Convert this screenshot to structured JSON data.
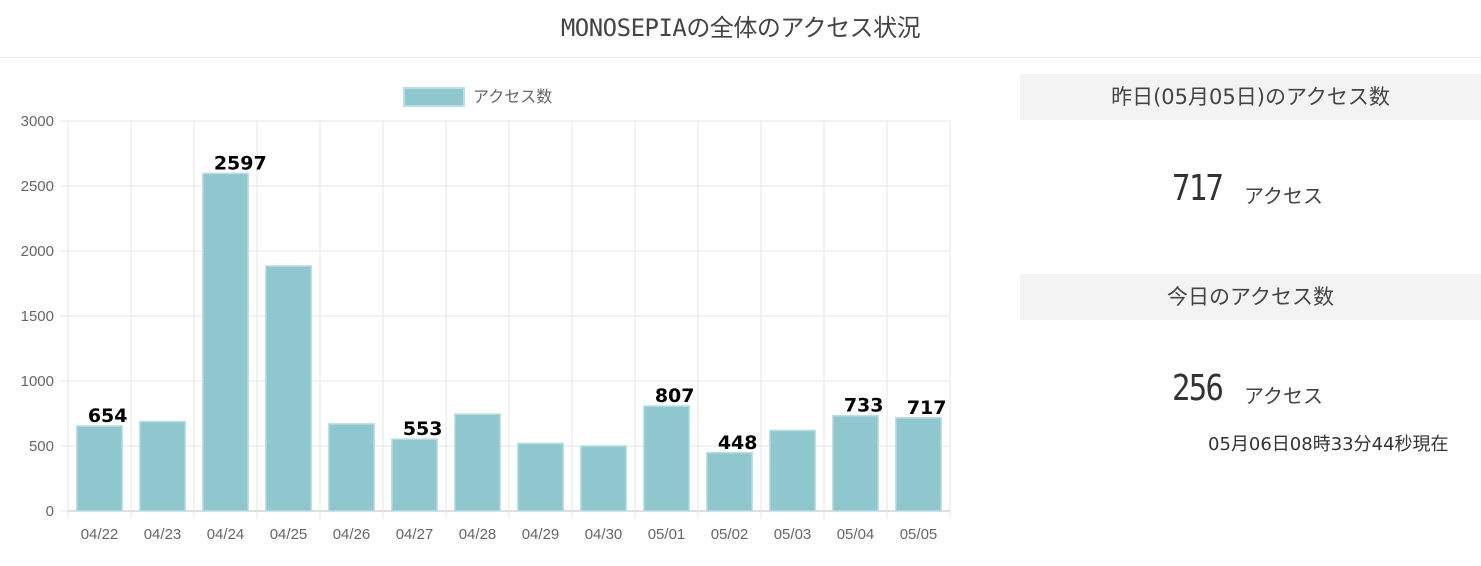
{
  "page": {
    "title": "MONOSEPIAの全体のアクセス状況"
  },
  "chart_data": {
    "type": "bar",
    "categories": [
      "04/22",
      "04/23",
      "04/24",
      "04/25",
      "04/26",
      "04/27",
      "04/28",
      "04/29",
      "04/30",
      "05/01",
      "05/02",
      "05/03",
      "05/04",
      "05/05"
    ],
    "series": [
      {
        "name": "アクセス数",
        "values": [
          654,
          688,
          2597,
          1885,
          670,
          553,
          745,
          520,
          500,
          807,
          448,
          620,
          733,
          717
        ],
        "data_labels": [
          "654",
          "",
          "2597",
          "",
          "",
          "553",
          "",
          "",
          "",
          "807",
          "448",
          "",
          "733",
          "717"
        ]
      }
    ],
    "ylim": [
      0,
      3000
    ],
    "yticks": [
      "0",
      "500",
      "1000",
      "1500",
      "2000",
      "2500",
      "3000"
    ],
    "grid": true,
    "legend_position": "top",
    "colors": {
      "bar_fill": "#8ec7cd",
      "bar_stroke": "#b9dde1",
      "grid": "#e6e6e6",
      "axis": "#bdbdbd"
    }
  },
  "stats": {
    "yesterday_header": "昨日(05月05日)のアクセス数",
    "yesterday_value": "717",
    "yesterday_unit": "アクセス",
    "today_header": "今日のアクセス数",
    "today_value": "256",
    "today_unit": "アクセス",
    "timestamp": "05月06日08時33分44秒現在"
  }
}
